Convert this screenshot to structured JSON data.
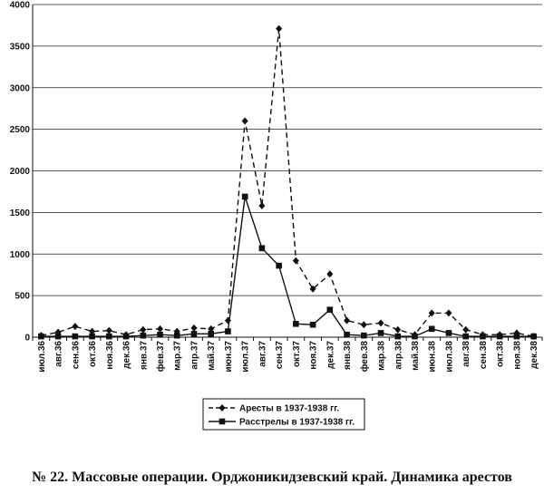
{
  "chart_data": {
    "type": "line",
    "caption": "№ 22. Массовые операции. Орджоникидзевский край. Динамика арестов",
    "x": [
      "июл.36",
      "авг.36",
      "сен.36",
      "окт.36",
      "ноя.36",
      "дек.36",
      "янв.37",
      "фев.37",
      "мар.37",
      "апр.37",
      "май.37",
      "июн.37",
      "июл.37",
      "авг.37",
      "сен.37",
      "окт.37",
      "ноя.37",
      "дек.37",
      "янв.38",
      "фев.38",
      "мар.38",
      "апр.38",
      "май.38",
      "июн.38",
      "июл.38",
      "авг.38",
      "сен.38",
      "окт.38",
      "ноя.38",
      "дек.38"
    ],
    "ylim": [
      0,
      4000
    ],
    "yticks": [
      0,
      500,
      1000,
      1500,
      2000,
      2500,
      3000,
      3500,
      4000
    ],
    "grid": true,
    "legend_position": "bottom",
    "series": [
      {
        "name": "Аресты в 1937-1938 гг.",
        "style": "dashed",
        "marker": "diamond",
        "values": [
          20,
          60,
          130,
          70,
          80,
          30,
          90,
          100,
          70,
          110,
          100,
          200,
          2600,
          1580,
          3710,
          920,
          580,
          760,
          200,
          150,
          170,
          90,
          30,
          290,
          290,
          90,
          30,
          30,
          50,
          10
        ]
      },
      {
        "name": "Расстрелы в 1937-1938 гг.",
        "style": "solid",
        "marker": "square",
        "values": [
          10,
          10,
          10,
          10,
          10,
          10,
          20,
          30,
          20,
          40,
          40,
          70,
          1690,
          1070,
          860,
          160,
          150,
          330,
          30,
          20,
          50,
          10,
          10,
          100,
          50,
          10,
          10,
          10,
          10,
          10
        ]
      }
    ]
  }
}
